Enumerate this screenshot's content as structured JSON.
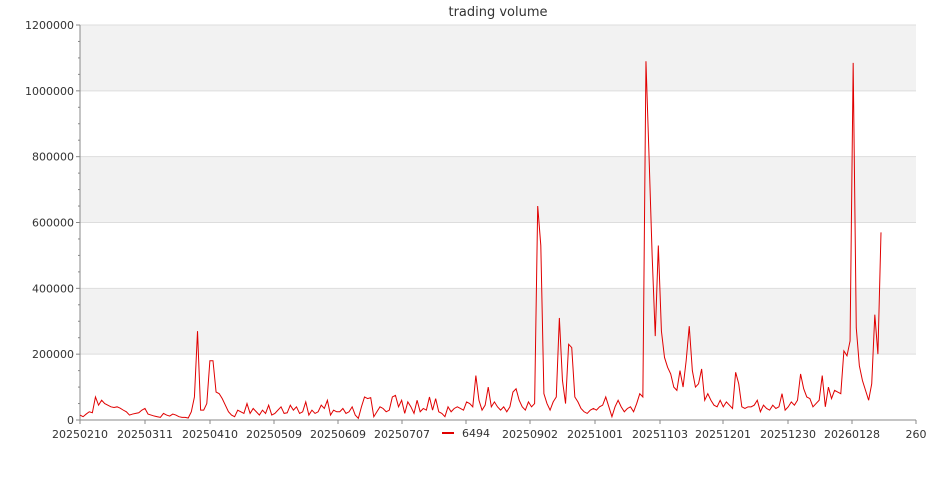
{
  "chart_data": {
    "type": "line",
    "title": "trading volume",
    "xlabel": "",
    "ylabel": "",
    "ylim": [
      0,
      1200000
    ],
    "yticks": [
      "0",
      "200000",
      "400000",
      "600000",
      "800000",
      "1000000",
      "1200000"
    ],
    "xticks": [
      "20250210",
      "20250311",
      "20250410",
      "20250509",
      "20250609",
      "20250707",
      "20250902",
      "20251001",
      "20251103",
      "20251201",
      "20251230",
      "20260128",
      "260"
    ],
    "grid": true,
    "legend": "bottom-center",
    "series_color": "#e00000",
    "band_color": "#f2f2f2",
    "series": [
      {
        "name": "6494",
        "values": [
          15000,
          10000,
          18000,
          25000,
          22000,
          70000,
          45000,
          60000,
          50000,
          45000,
          40000,
          38000,
          40000,
          36000,
          30000,
          25000,
          15000,
          18000,
          20000,
          22000,
          30000,
          35000,
          18000,
          15000,
          12000,
          10000,
          8000,
          20000,
          15000,
          12000,
          18000,
          15000,
          10000,
          8000,
          8000,
          6000,
          25000,
          70000,
          270000,
          30000,
          30000,
          50000,
          180000,
          180000,
          85000,
          80000,
          65000,
          45000,
          25000,
          15000,
          10000,
          30000,
          25000,
          20000,
          50000,
          20000,
          35000,
          25000,
          15000,
          30000,
          20000,
          45000,
          15000,
          20000,
          30000,
          40000,
          20000,
          22000,
          45000,
          30000,
          40000,
          20000,
          25000,
          55000,
          15000,
          30000,
          20000,
          25000,
          45000,
          35000,
          60000,
          15000,
          30000,
          25000,
          25000,
          35000,
          20000,
          25000,
          40000,
          15000,
          5000,
          40000,
          70000,
          65000,
          68000,
          10000,
          25000,
          40000,
          35000,
          25000,
          30000,
          70000,
          75000,
          40000,
          60000,
          20000,
          55000,
          40000,
          20000,
          60000,
          25000,
          35000,
          30000,
          70000,
          30000,
          65000,
          25000,
          20000,
          10000,
          40000,
          25000,
          35000,
          40000,
          35000,
          30000,
          55000,
          50000,
          40000,
          135000,
          60000,
          30000,
          45000,
          100000,
          40000,
          55000,
          40000,
          30000,
          40000,
          25000,
          40000,
          85000,
          95000,
          60000,
          40000,
          30000,
          55000,
          40000,
          50000,
          650000,
          530000,
          80000,
          50000,
          30000,
          55000,
          70000,
          310000,
          120000,
          50000,
          230000,
          220000,
          70000,
          55000,
          35000,
          25000,
          20000,
          30000,
          35000,
          30000,
          40000,
          45000,
          70000,
          40000,
          10000,
          40000,
          60000,
          40000,
          25000,
          35000,
          40000,
          25000,
          50000,
          80000,
          70000,
          1090000,
          800000,
          500000,
          255000,
          530000,
          270000,
          190000,
          160000,
          140000,
          100000,
          90000,
          150000,
          100000,
          180000,
          285000,
          150000,
          100000,
          110000,
          155000,
          60000,
          80000,
          60000,
          45000,
          40000,
          60000,
          40000,
          55000,
          45000,
          35000,
          145000,
          110000,
          40000,
          35000,
          40000,
          40000,
          45000,
          60000,
          25000,
          45000,
          35000,
          30000,
          45000,
          35000,
          40000,
          80000,
          30000,
          40000,
          55000,
          45000,
          60000,
          140000,
          95000,
          70000,
          65000,
          40000,
          50000,
          60000,
          135000,
          40000,
          100000,
          65000,
          90000,
          85000,
          80000,
          210000,
          195000,
          240000,
          1085000,
          280000,
          165000,
          120000,
          90000,
          60000,
          110000,
          320000,
          200000,
          570000
        ]
      }
    ]
  }
}
